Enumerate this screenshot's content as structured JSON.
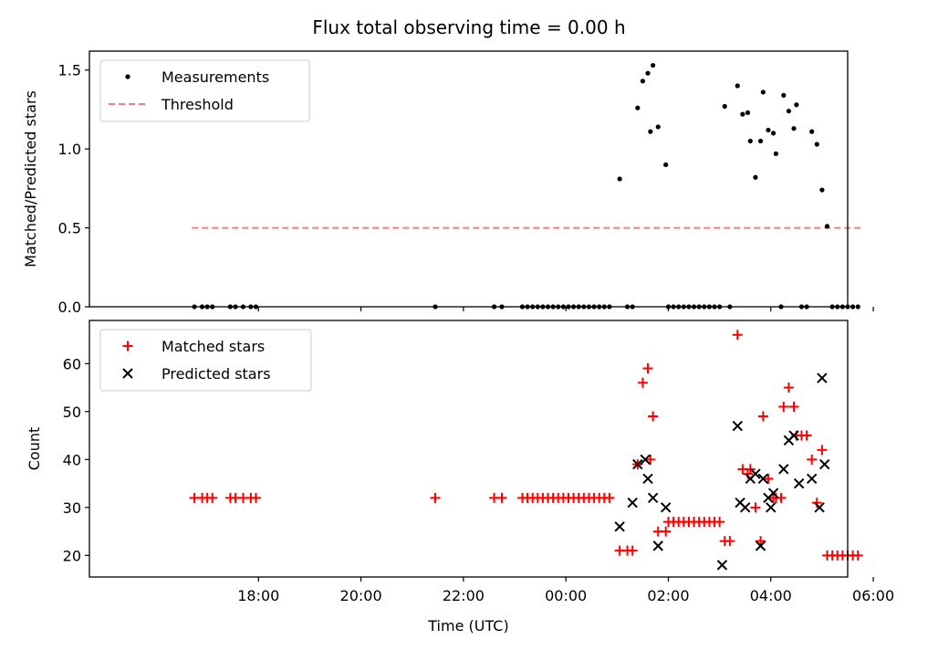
{
  "title": "Flux total observing time = 0.00 h",
  "colors": {
    "measurement": "#000000",
    "threshold": "#f08080",
    "matched": "#ff0000",
    "predicted": "#000000"
  },
  "chart_data": [
    {
      "type": "scatter",
      "ylabel": "Matched/Predicted stars",
      "xlabel": "",
      "ylim": [
        0,
        1.62
      ],
      "yticks": [
        "0.0",
        "0.5",
        "1.0",
        "1.5"
      ],
      "ytick_values": [
        0,
        0.5,
        1.0,
        1.5
      ],
      "grid": false,
      "legend_position": "top-left",
      "threshold": {
        "name": "Threshold",
        "value": 0.5,
        "x_from": 16.7,
        "x_to": 29.75
      },
      "series": [
        {
          "name": "Measurements",
          "points": [
            [
              16.75,
              0
            ],
            [
              16.9,
              0
            ],
            [
              17.0,
              0
            ],
            [
              17.1,
              0
            ],
            [
              17.45,
              0
            ],
            [
              17.55,
              0
            ],
            [
              17.7,
              0
            ],
            [
              17.85,
              0
            ],
            [
              17.95,
              0
            ],
            [
              21.45,
              0
            ],
            [
              22.6,
              0
            ],
            [
              22.75,
              0
            ],
            [
              23.15,
              0
            ],
            [
              23.25,
              0
            ],
            [
              23.35,
              0
            ],
            [
              23.45,
              0
            ],
            [
              23.55,
              0
            ],
            [
              23.65,
              0
            ],
            [
              23.75,
              0
            ],
            [
              23.85,
              0
            ],
            [
              23.95,
              0
            ],
            [
              24.05,
              0
            ],
            [
              24.15,
              0
            ],
            [
              24.25,
              0
            ],
            [
              24.35,
              0
            ],
            [
              24.45,
              0
            ],
            [
              24.55,
              0
            ],
            [
              24.65,
              0
            ],
            [
              24.75,
              0
            ],
            [
              24.85,
              0
            ],
            [
              25.05,
              0.81
            ],
            [
              25.2,
              0
            ],
            [
              25.3,
              0
            ],
            [
              25.4,
              1.26
            ],
            [
              25.5,
              1.43
            ],
            [
              25.6,
              1.48
            ],
            [
              25.65,
              1.11
            ],
            [
              25.7,
              1.53
            ],
            [
              25.8,
              1.14
            ],
            [
              25.95,
              0.9
            ],
            [
              26.0,
              0
            ],
            [
              26.1,
              0
            ],
            [
              26.2,
              0
            ],
            [
              26.3,
              0
            ],
            [
              26.4,
              0
            ],
            [
              26.5,
              0
            ],
            [
              26.6,
              0
            ],
            [
              26.7,
              0
            ],
            [
              26.8,
              0
            ],
            [
              26.9,
              0
            ],
            [
              27.0,
              0
            ],
            [
              27.1,
              1.27
            ],
            [
              27.2,
              0
            ],
            [
              27.35,
              1.4
            ],
            [
              27.45,
              1.22
            ],
            [
              27.55,
              1.23
            ],
            [
              27.6,
              1.05
            ],
            [
              27.7,
              0.82
            ],
            [
              27.8,
              1.05
            ],
            [
              27.85,
              1.36
            ],
            [
              27.95,
              1.12
            ],
            [
              28.05,
              1.1
            ],
            [
              28.1,
              0.97
            ],
            [
              28.2,
              0
            ],
            [
              28.25,
              1.34
            ],
            [
              28.35,
              1.24
            ],
            [
              28.45,
              1.13
            ],
            [
              28.5,
              1.28
            ],
            [
              28.6,
              0
            ],
            [
              28.7,
              0
            ],
            [
              28.8,
              1.11
            ],
            [
              28.9,
              1.03
            ],
            [
              29.0,
              0.74
            ],
            [
              29.1,
              0.51
            ],
            [
              29.2,
              0
            ],
            [
              29.3,
              0
            ],
            [
              29.4,
              0
            ],
            [
              29.5,
              0
            ],
            [
              29.6,
              0
            ],
            [
              29.7,
              0
            ]
          ]
        }
      ]
    },
    {
      "type": "scatter",
      "ylabel": "Count",
      "xlabel": "Time (UTC)",
      "xlim": [
        14.7,
        29.5
      ],
      "xticks": [
        "18:00",
        "20:00",
        "22:00",
        "00:00",
        "02:00",
        "04:00",
        "06:00"
      ],
      "xtick_values": [
        18,
        20,
        22,
        24,
        26,
        28,
        30
      ],
      "ylim": [
        15.5,
        69
      ],
      "yticks": [
        "20",
        "30",
        "40",
        "50",
        "60"
      ],
      "ytick_values": [
        20,
        30,
        40,
        50,
        60
      ],
      "grid": false,
      "legend_position": "top-left",
      "series": [
        {
          "name": "Matched stars",
          "marker": "plus",
          "points": [
            [
              16.75,
              32
            ],
            [
              16.9,
              32
            ],
            [
              17.0,
              32
            ],
            [
              17.1,
              32
            ],
            [
              17.45,
              32
            ],
            [
              17.55,
              32
            ],
            [
              17.7,
              32
            ],
            [
              17.85,
              32
            ],
            [
              17.95,
              32
            ],
            [
              21.45,
              32
            ],
            [
              22.6,
              32
            ],
            [
              22.75,
              32
            ],
            [
              23.15,
              32
            ],
            [
              23.25,
              32
            ],
            [
              23.35,
              32
            ],
            [
              23.45,
              32
            ],
            [
              23.55,
              32
            ],
            [
              23.65,
              32
            ],
            [
              23.75,
              32
            ],
            [
              23.85,
              32
            ],
            [
              23.95,
              32
            ],
            [
              24.05,
              32
            ],
            [
              24.15,
              32
            ],
            [
              24.25,
              32
            ],
            [
              24.35,
              32
            ],
            [
              24.45,
              32
            ],
            [
              24.55,
              32
            ],
            [
              24.65,
              32
            ],
            [
              24.75,
              32
            ],
            [
              24.85,
              32
            ],
            [
              25.05,
              21
            ],
            [
              25.2,
              21
            ],
            [
              25.3,
              21
            ],
            [
              25.4,
              39
            ],
            [
              25.5,
              56
            ],
            [
              25.6,
              59
            ],
            [
              25.65,
              40
            ],
            [
              25.7,
              49
            ],
            [
              25.8,
              25
            ],
            [
              25.95,
              25
            ],
            [
              26.0,
              27
            ],
            [
              26.1,
              27
            ],
            [
              26.2,
              27
            ],
            [
              26.3,
              27
            ],
            [
              26.4,
              27
            ],
            [
              26.5,
              27
            ],
            [
              26.6,
              27
            ],
            [
              26.7,
              27
            ],
            [
              26.8,
              27
            ],
            [
              26.9,
              27
            ],
            [
              27.0,
              27
            ],
            [
              27.1,
              23
            ],
            [
              27.2,
              23
            ],
            [
              27.35,
              66
            ],
            [
              27.45,
              38
            ],
            [
              27.55,
              37
            ],
            [
              27.6,
              38
            ],
            [
              27.7,
              30
            ],
            [
              27.8,
              23
            ],
            [
              27.85,
              49
            ],
            [
              27.95,
              36
            ],
            [
              28.05,
              32
            ],
            [
              28.1,
              32
            ],
            [
              28.2,
              32
            ],
            [
              28.25,
              51
            ],
            [
              28.35,
              55
            ],
            [
              28.45,
              51
            ],
            [
              28.5,
              45
            ],
            [
              28.6,
              45
            ],
            [
              28.7,
              45
            ],
            [
              28.8,
              40
            ],
            [
              28.9,
              31
            ],
            [
              29.0,
              42
            ],
            [
              29.1,
              20
            ],
            [
              29.2,
              20
            ],
            [
              29.3,
              20
            ],
            [
              29.4,
              20
            ],
            [
              29.5,
              20
            ],
            [
              29.6,
              20
            ],
            [
              29.7,
              20
            ]
          ]
        },
        {
          "name": "Predicted stars",
          "marker": "x",
          "points": [
            [
              25.05,
              26
            ],
            [
              25.3,
              31
            ],
            [
              25.4,
              39
            ],
            [
              25.55,
              40
            ],
            [
              25.6,
              36
            ],
            [
              25.7,
              32
            ],
            [
              25.8,
              22
            ],
            [
              25.95,
              30
            ],
            [
              27.05,
              18
            ],
            [
              27.35,
              47
            ],
            [
              27.4,
              31
            ],
            [
              27.5,
              30
            ],
            [
              27.6,
              36
            ],
            [
              27.7,
              37
            ],
            [
              27.8,
              22
            ],
            [
              27.85,
              36
            ],
            [
              27.95,
              32
            ],
            [
              28.0,
              30
            ],
            [
              28.05,
              33
            ],
            [
              28.25,
              38
            ],
            [
              28.35,
              44
            ],
            [
              28.45,
              45
            ],
            [
              28.55,
              35
            ],
            [
              28.8,
              36
            ],
            [
              28.95,
              30
            ],
            [
              29.0,
              57
            ],
            [
              29.05,
              39
            ]
          ]
        }
      ]
    }
  ]
}
